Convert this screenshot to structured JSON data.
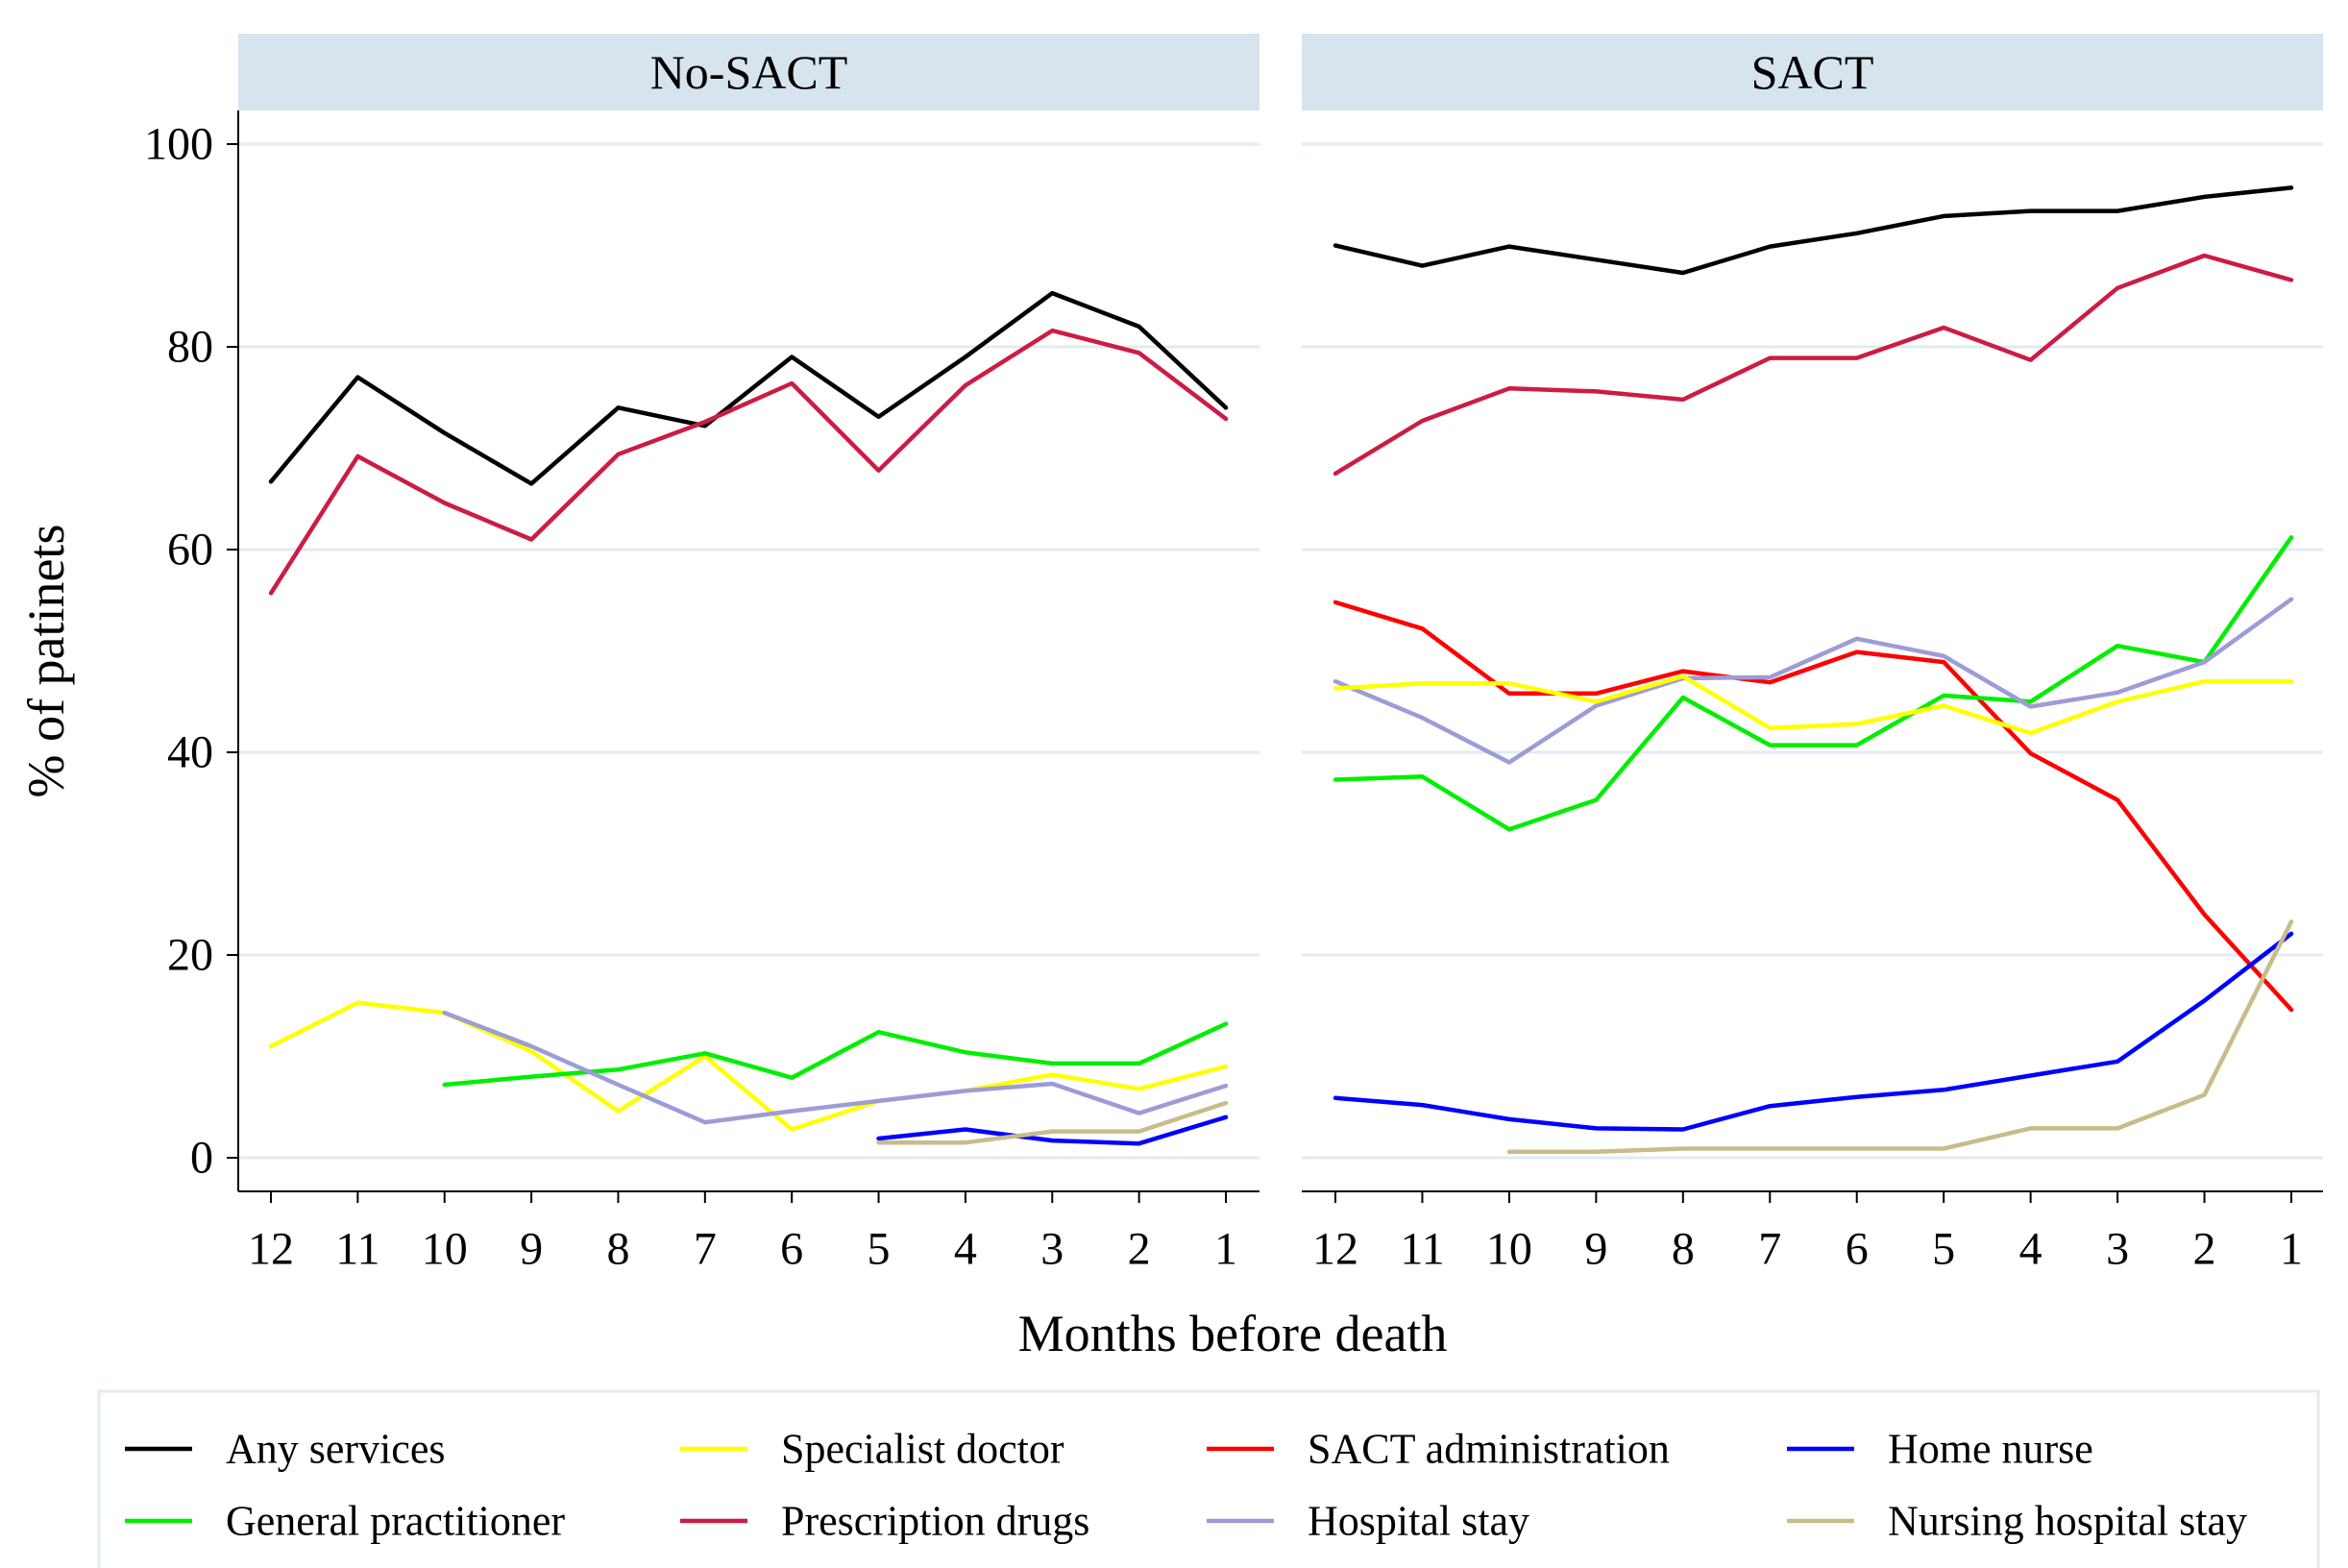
{
  "chart_data": {
    "type": "line",
    "xlabel": "Months before death",
    "ylabel": "% of patinets",
    "ylim": [
      0,
      100
    ],
    "yticks": [
      0,
      20,
      40,
      60,
      80,
      100
    ],
    "x": [
      12,
      11,
      10,
      9,
      8,
      7,
      6,
      5,
      4,
      3,
      2,
      1
    ],
    "x_tick_labels": [
      "12",
      "11",
      "10",
      "9",
      "8",
      "7",
      "6",
      "5",
      "4",
      "3",
      "2",
      "1"
    ],
    "grid": true,
    "legend_position": "bottom",
    "legend": [
      {
        "name": "Any services",
        "color": "#000000"
      },
      {
        "name": "Specialist doctor",
        "color": "#ffff00"
      },
      {
        "name": "SACT administration",
        "color": "#ff0000"
      },
      {
        "name": "Home nurse",
        "color": "#0000ff"
      },
      {
        "name": "General practitioner",
        "color": "#00ee00"
      },
      {
        "name": "Prescription drugs",
        "color": "#cc1c44"
      },
      {
        "name": "Hospital stay",
        "color": "#9c9cd8"
      },
      {
        "name": "Nursing hospital stay",
        "color": "#c8bc8c"
      }
    ],
    "panels": [
      {
        "title": "No-SACT",
        "series": [
          {
            "name": "Any services",
            "values": [
              66.7,
              77,
              71.5,
              66.5,
              74,
              72.2,
              79,
              73.1,
              79,
              85.3,
              82,
              74
            ]
          },
          {
            "name": "Prescription drugs",
            "values": [
              55.7,
              69.2,
              64.6,
              61,
              69.4,
              72.6,
              76.4,
              67.8,
              76.2,
              81.6,
              79.4,
              72.9
            ]
          },
          {
            "name": "Specialist doctor",
            "values": [
              11,
              15.3,
              14.3,
              10.5,
              4.6,
              10,
              2.8,
              5.6,
              6.6,
              8.2,
              6.8,
              9
            ]
          },
          {
            "name": "General practitioner",
            "values": [
              null,
              null,
              7.2,
              8,
              8.7,
              10.3,
              7.9,
              12.4,
              10.4,
              9.3,
              9.3,
              13.2
            ]
          },
          {
            "name": "Hospital stay",
            "values": [
              null,
              null,
              14.3,
              11,
              7.2,
              3.5,
              4.6,
              5.6,
              6.6,
              7.3,
              4.4,
              7.1
            ]
          },
          {
            "name": "Home nurse",
            "values": [
              null,
              null,
              null,
              null,
              null,
              null,
              null,
              1.9,
              2.8,
              1.7,
              1.4,
              4
            ]
          },
          {
            "name": "Nursing hospital stay",
            "values": [
              null,
              null,
              null,
              null,
              null,
              null,
              null,
              1.5,
              1.5,
              2.6,
              2.6,
              5.4
            ]
          }
        ]
      },
      {
        "title": "SACT",
        "series": [
          {
            "name": "Any services",
            "values": [
              90,
              88,
              89.9,
              88.6,
              87.3,
              89.9,
              91.2,
              92.9,
              93.4,
              93.4,
              94.8,
              95.7
            ]
          },
          {
            "name": "Prescription drugs",
            "values": [
              67.5,
              72.7,
              75.9,
              75.6,
              74.8,
              78.9,
              78.9,
              81.9,
              78.7,
              85.8,
              89,
              86.6
            ]
          },
          {
            "name": "SACT administration",
            "values": [
              54.8,
              52.2,
              45.8,
              45.8,
              48,
              46.9,
              49.9,
              48.9,
              39.9,
              35.3,
              24,
              14.6
            ]
          },
          {
            "name": "General practitioner",
            "values": [
              37.3,
              37.6,
              32.4,
              35.3,
              45.4,
              40.7,
              40.7,
              45.6,
              45,
              50.5,
              48.9,
              61.2
            ]
          },
          {
            "name": "Hospital stay",
            "values": [
              47,
              43.4,
              39,
              44.6,
              47.3,
              47.4,
              51.2,
              49.5,
              44.5,
              45.9,
              48.9,
              55.1
            ]
          },
          {
            "name": "Specialist doctor",
            "values": [
              46.3,
              46.8,
              46.8,
              45,
              47.5,
              42.4,
              42.8,
              44.6,
              41.9,
              45,
              47,
              47
            ]
          },
          {
            "name": "Home nurse",
            "values": [
              5.9,
              5.2,
              3.8,
              2.9,
              2.8,
              5.1,
              6,
              6.7,
              8.1,
              9.5,
              15.5,
              22.1
            ]
          },
          {
            "name": "Nursing hospital stay",
            "values": [
              null,
              null,
              0.6,
              0.6,
              0.9,
              0.9,
              0.9,
              0.9,
              2.9,
              2.9,
              6.2,
              23.3
            ]
          }
        ]
      }
    ]
  }
}
